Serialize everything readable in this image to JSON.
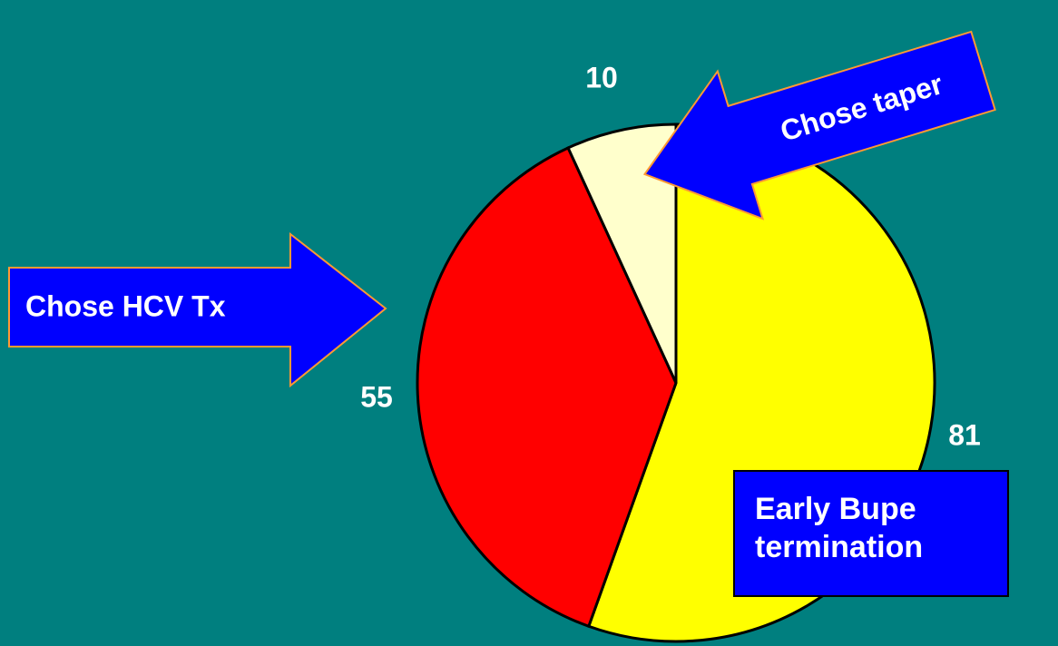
{
  "chart_data": {
    "type": "pie",
    "categories": [
      "Early Bupe termination",
      "Chose HCV Tx",
      "Chose taper"
    ],
    "values": [
      81,
      55,
      10
    ],
    "colors": [
      "#ffff00",
      "#ff0000",
      "#ffffcc"
    ]
  }
}
